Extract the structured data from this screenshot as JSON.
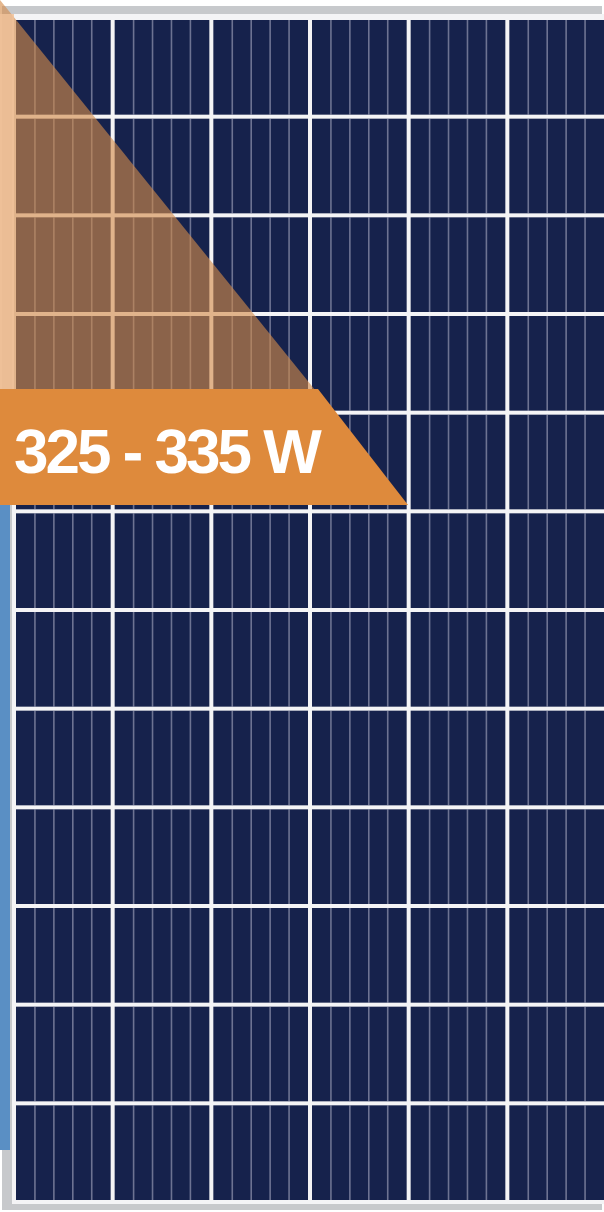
{
  "product": {
    "power_range_label": "325 - 335 W"
  },
  "panel": {
    "cell_columns": 6,
    "cell_rows": 12,
    "busbars_per_cell": 4
  },
  "colors": {
    "cell_blue": "#16224c",
    "cell_line": "#6d7392",
    "grid_white": "#f4f4f6",
    "frame_gray": "#c7c9cc",
    "frame_edge": "#9a9da2",
    "side_blue": "#5a8fc4",
    "banner_orange": "#de8a3c",
    "overlay_brown": "#d38a48",
    "overlay_peach": "#f0c29a",
    "label_text": "#ffffff"
  }
}
